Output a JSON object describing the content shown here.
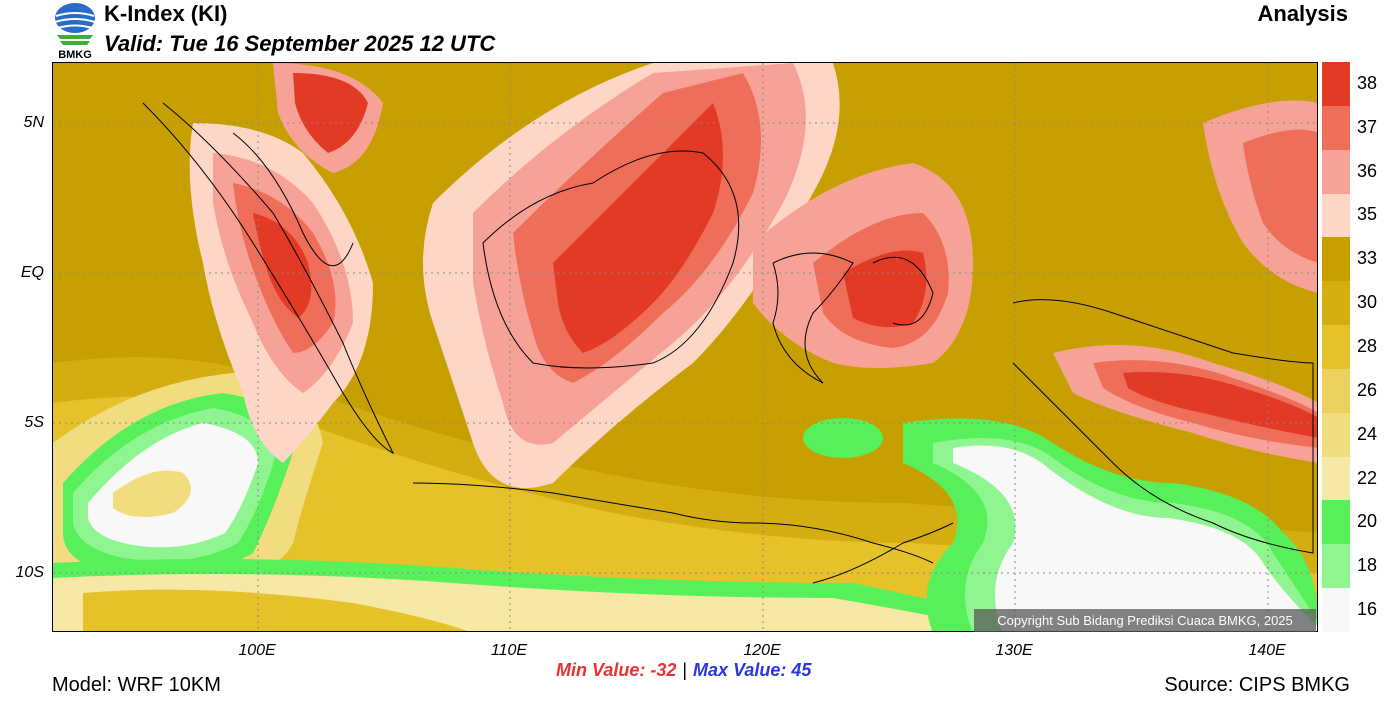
{
  "header": {
    "logo_text": "BMKG",
    "title": "K-Index (KI)",
    "valid": "Valid: Tue 16 September 2025 12 UTC",
    "analysis": "Analysis"
  },
  "map": {
    "y_labels": [
      "5N",
      "EQ",
      "5S",
      "10S"
    ],
    "x_labels": [
      "100E",
      "110E",
      "120E",
      "130E",
      "140E"
    ],
    "copyright": "Copyright Sub Bidang Prediksi Cuaca BMKG, 2025"
  },
  "stats": {
    "min": "Min Value: -32",
    "separator": "|",
    "max": "Max Value:  45"
  },
  "footer": {
    "model": "Model: WRF 10KM",
    "source": "Source: CIPS BMKG"
  },
  "colorbar": {
    "labels": [
      "38",
      "37",
      "36",
      "35",
      "33",
      "30",
      "28",
      "26",
      "24",
      "22",
      "20",
      "18",
      "16"
    ],
    "colors": [
      "#e23a25",
      "#ef6e5a",
      "#f7a296",
      "#fdd6c6",
      "#c89f00",
      "#d4ae10",
      "#e5c22a",
      "#ecd060",
      "#f1dd80",
      "#f6e9a6",
      "#57f05a",
      "#8ff590",
      "#f8f8f8"
    ]
  }
}
